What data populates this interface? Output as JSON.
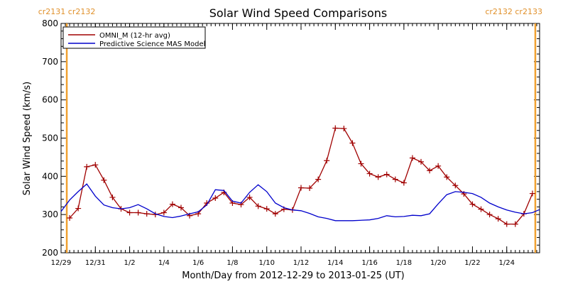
{
  "chart_data": {
    "type": "line",
    "title": "Solar Wind Speed Comparisons",
    "xlabel": "Month/Day from 2012-12-29 to 2013-01-25 (UT)",
    "ylabel": "Solar Wind Speed (km/s)",
    "xlim": [
      "2012-12-29",
      "2013-01-25 22:00"
    ],
    "ylim": [
      200,
      800
    ],
    "x_ticks": [
      {
        "date": "2012-12-29",
        "label": "12/29"
      },
      {
        "date": "2012-12-31",
        "label": "12/31"
      },
      {
        "date": "2013-01-02",
        "label": "1/2"
      },
      {
        "date": "2013-01-04",
        "label": "1/4"
      },
      {
        "date": "2013-01-06",
        "label": "1/6"
      },
      {
        "date": "2013-01-08",
        "label": "1/8"
      },
      {
        "date": "2013-01-10",
        "label": "1/10"
      },
      {
        "date": "2013-01-12",
        "label": "1/12"
      },
      {
        "date": "2013-01-14",
        "label": "1/14"
      },
      {
        "date": "2013-01-16",
        "label": "1/16"
      },
      {
        "date": "2013-01-18",
        "label": "1/18"
      },
      {
        "date": "2013-01-20",
        "label": "1/20"
      },
      {
        "date": "2013-01-22",
        "label": "1/22"
      },
      {
        "date": "2013-01-24",
        "label": "1/24"
      }
    ],
    "y_ticks": [
      200,
      300,
      400,
      500,
      600,
      700,
      800
    ],
    "legend_position": "top-left",
    "carrington_markers": [
      {
        "date": "2012-12-29 08:00",
        "labels": [
          "cr2131",
          "cr2132"
        ],
        "label_side": "left"
      },
      {
        "date": "2013-01-25 16:00",
        "labels": [
          "cr2132",
          "cr2133"
        ],
        "label_side": "right"
      }
    ],
    "series": [
      {
        "name": "OMNI_M (12-hr avg)",
        "color": "#a00000",
        "marker": "plus",
        "points": [
          [
            "2012-12-29 12:00",
            291
          ],
          [
            "2012-12-30 00:00",
            316
          ],
          [
            "2012-12-30 12:00",
            425
          ],
          [
            "2012-12-31 00:00",
            430
          ],
          [
            "2012-12-31 12:00",
            390
          ],
          [
            "2013-01-01 00:00",
            345
          ],
          [
            "2013-01-01 12:00",
            315
          ],
          [
            "2013-01-02 00:00",
            305
          ],
          [
            "2013-01-02 12:00",
            305
          ],
          [
            "2013-01-03 00:00",
            302
          ],
          [
            "2013-01-03 12:00",
            300
          ],
          [
            "2013-01-04 00:00",
            305
          ],
          [
            "2013-01-04 12:00",
            327
          ],
          [
            "2013-01-05 00:00",
            318
          ],
          [
            "2013-01-05 12:00",
            297
          ],
          [
            "2013-01-06 00:00",
            302
          ],
          [
            "2013-01-06 12:00",
            330
          ],
          [
            "2013-01-07 00:00",
            343
          ],
          [
            "2013-01-07 12:00",
            358
          ],
          [
            "2013-01-08 00:00",
            330
          ],
          [
            "2013-01-08 12:00",
            326
          ],
          [
            "2013-01-09 00:00",
            345
          ],
          [
            "2013-01-09 12:00",
            322
          ],
          [
            "2013-01-10 00:00",
            315
          ],
          [
            "2013-01-10 12:00",
            302
          ],
          [
            "2013-01-11 00:00",
            314
          ],
          [
            "2013-01-11 12:00",
            312
          ],
          [
            "2013-01-12 00:00",
            370
          ],
          [
            "2013-01-12 12:00",
            369
          ],
          [
            "2013-01-13 00:00",
            392
          ],
          [
            "2013-01-13 12:00",
            441
          ],
          [
            "2013-01-14 00:00",
            526
          ],
          [
            "2013-01-14 12:00",
            525
          ],
          [
            "2013-01-15 00:00",
            487
          ],
          [
            "2013-01-15 12:00",
            433
          ],
          [
            "2013-01-16 00:00",
            407
          ],
          [
            "2013-01-16 12:00",
            398
          ],
          [
            "2013-01-17 00:00",
            405
          ],
          [
            "2013-01-17 12:00",
            392
          ],
          [
            "2013-01-18 00:00",
            383
          ],
          [
            "2013-01-18 12:00",
            448
          ],
          [
            "2013-01-19 00:00",
            438
          ],
          [
            "2013-01-19 12:00",
            415
          ],
          [
            "2013-01-20 00:00",
            427
          ],
          [
            "2013-01-20 12:00",
            398
          ],
          [
            "2013-01-21 00:00",
            376
          ],
          [
            "2013-01-21 12:00",
            354
          ],
          [
            "2013-01-22 00:00",
            327
          ],
          [
            "2013-01-22 12:00",
            314
          ],
          [
            "2013-01-23 00:00",
            300
          ],
          [
            "2013-01-23 12:00",
            289
          ],
          [
            "2013-01-24 00:00",
            275
          ],
          [
            "2013-01-24 12:00",
            275
          ],
          [
            "2013-01-25 00:00",
            302
          ],
          [
            "2013-01-25 12:00",
            355
          ]
        ]
      },
      {
        "name": "Predictive Science MAS Model",
        "color": "#0000cc",
        "marker": "none",
        "points": [
          [
            "2012-12-29 00:00",
            308
          ],
          [
            "2012-12-29 12:00",
            338
          ],
          [
            "2012-12-30 00:00",
            360
          ],
          [
            "2012-12-30 12:00",
            380
          ],
          [
            "2012-12-31 00:00",
            348
          ],
          [
            "2012-12-31 12:00",
            325
          ],
          [
            "2013-01-01 00:00",
            318
          ],
          [
            "2013-01-01 12:00",
            315
          ],
          [
            "2013-01-02 00:00",
            318
          ],
          [
            "2013-01-02 12:00",
            326
          ],
          [
            "2013-01-03 00:00",
            315
          ],
          [
            "2013-01-03 12:00",
            302
          ],
          [
            "2013-01-04 00:00",
            295
          ],
          [
            "2013-01-04 12:00",
            292
          ],
          [
            "2013-01-05 00:00",
            296
          ],
          [
            "2013-01-05 12:00",
            302
          ],
          [
            "2013-01-06 00:00",
            307
          ],
          [
            "2013-01-06 12:00",
            325
          ],
          [
            "2013-01-07 00:00",
            365
          ],
          [
            "2013-01-07 12:00",
            363
          ],
          [
            "2013-01-08 00:00",
            335
          ],
          [
            "2013-01-08 12:00",
            330
          ],
          [
            "2013-01-09 00:00",
            358
          ],
          [
            "2013-01-09 12:00",
            378
          ],
          [
            "2013-01-10 00:00",
            360
          ],
          [
            "2013-01-10 12:00",
            330
          ],
          [
            "2013-01-11 00:00",
            318
          ],
          [
            "2013-01-11 12:00",
            312
          ],
          [
            "2013-01-12 00:00",
            310
          ],
          [
            "2013-01-12 12:00",
            303
          ],
          [
            "2013-01-13 00:00",
            294
          ],
          [
            "2013-01-13 12:00",
            290
          ],
          [
            "2013-01-14 00:00",
            284
          ],
          [
            "2013-01-15 00:00",
            284
          ],
          [
            "2013-01-16 00:00",
            286
          ],
          [
            "2013-01-16 12:00",
            290
          ],
          [
            "2013-01-17 00:00",
            297
          ],
          [
            "2013-01-17 12:00",
            294
          ],
          [
            "2013-01-18 00:00",
            295
          ],
          [
            "2013-01-18 12:00",
            298
          ],
          [
            "2013-01-19 00:00",
            297
          ],
          [
            "2013-01-19 12:00",
            302
          ],
          [
            "2013-01-20 00:00",
            328
          ],
          [
            "2013-01-20 12:00",
            352
          ],
          [
            "2013-01-21 00:00",
            360
          ],
          [
            "2013-01-21 12:00",
            358
          ],
          [
            "2013-01-22 00:00",
            355
          ],
          [
            "2013-01-22 12:00",
            345
          ],
          [
            "2013-01-23 00:00",
            330
          ],
          [
            "2013-01-23 12:00",
            320
          ],
          [
            "2013-01-24 00:00",
            312
          ],
          [
            "2013-01-24 12:00",
            306
          ],
          [
            "2013-01-25 00:00",
            302
          ],
          [
            "2013-01-25 12:00",
            305
          ],
          [
            "2013-01-25 22:00",
            313
          ]
        ]
      }
    ]
  }
}
